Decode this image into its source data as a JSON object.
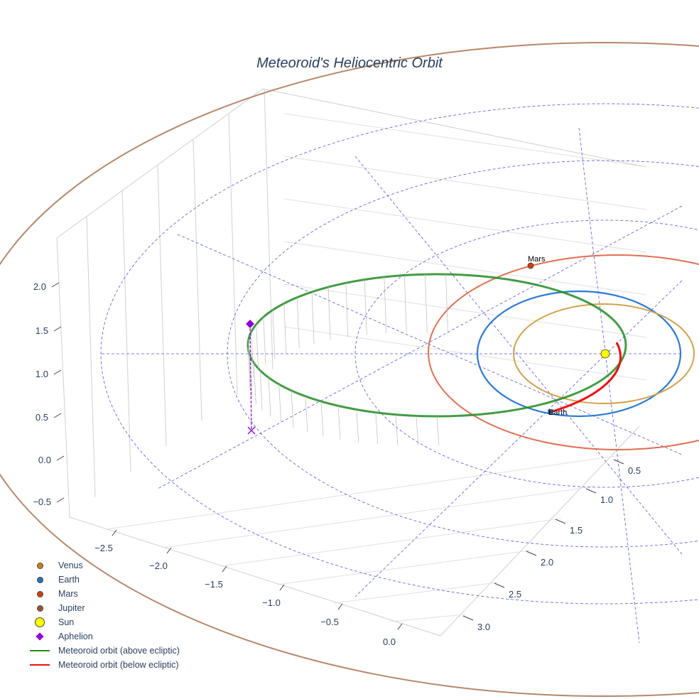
{
  "chart_data": {
    "type": "scatter3d",
    "title": "Meteoroid's Heliocentric Orbit",
    "axes": {
      "x": {
        "ticks": [
          "−2.5",
          "−2.0",
          "−1.5",
          "−1.0",
          "−0.5",
          "0.0"
        ]
      },
      "y": {
        "ticks": [
          "0.5",
          "1.0",
          "1.5",
          "2.0",
          "2.5",
          "3.0"
        ]
      },
      "z": {
        "ticks": [
          "2.0",
          "1.5",
          "1.0",
          "0.5",
          "0.0",
          "−0.5"
        ]
      }
    },
    "point_labels": {
      "mars": "Mars",
      "earth": "Earth"
    },
    "legend": [
      {
        "name": "Venus",
        "color": "#c8860a",
        "symbol": "circle"
      },
      {
        "name": "Earth",
        "color": "#1f77b4",
        "symbol": "circle"
      },
      {
        "name": "Mars",
        "color": "#d2400c",
        "symbol": "circle"
      },
      {
        "name": "Jupiter",
        "color": "#a0522d",
        "symbol": "circle"
      },
      {
        "name": "Sun",
        "color": "#ffff00",
        "symbol": "circle-large"
      },
      {
        "name": "Aphelion",
        "color": "#9400d3",
        "symbol": "diamond"
      },
      {
        "name": "Meteoroid orbit (above ecliptic)",
        "color": "#228b22",
        "symbol": "line"
      },
      {
        "name": "Meteoroid orbit (below ecliptic)",
        "color": "#ee1111",
        "symbol": "line"
      }
    ],
    "orbit_colors": {
      "venus": "#d4a24c",
      "earth": "#2b7bd6",
      "mars": "#e07050",
      "jupiter": "#b8876a",
      "grid": "#5555dd"
    }
  }
}
